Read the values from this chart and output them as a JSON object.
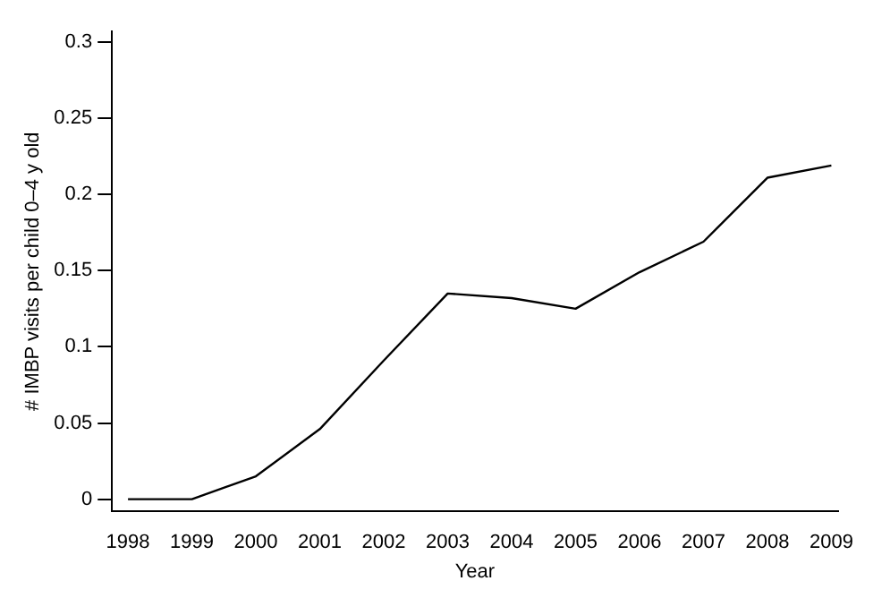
{
  "chart_data": {
    "type": "line",
    "xlabel": "Year",
    "ylabel": "# IMBP visits per child 0–4 y old",
    "x": [
      1998,
      1999,
      2000,
      2001,
      2002,
      2003,
      2004,
      2005,
      2006,
      2007,
      2008,
      2009
    ],
    "series": [
      {
        "color": "#000000",
        "values": [
          0,
          0,
          0.015,
          0.046,
          0.091,
          0.135,
          0.132,
          0.125,
          0.149,
          0.169,
          0.211,
          0.219
        ]
      }
    ],
    "xlim": [
      1997.75,
      2009.1
    ],
    "ylim": [
      -0.008,
      0.307
    ],
    "xticks": [
      1998,
      1999,
      2000,
      2001,
      2002,
      2003,
      2004,
      2005,
      2006,
      2007,
      2008,
      2009
    ],
    "yticks": [
      0,
      0.05,
      0.1,
      0.15,
      0.2,
      0.25,
      0.3
    ],
    "grid": false,
    "legend": false,
    "marker": "none",
    "line_style": "solid"
  }
}
